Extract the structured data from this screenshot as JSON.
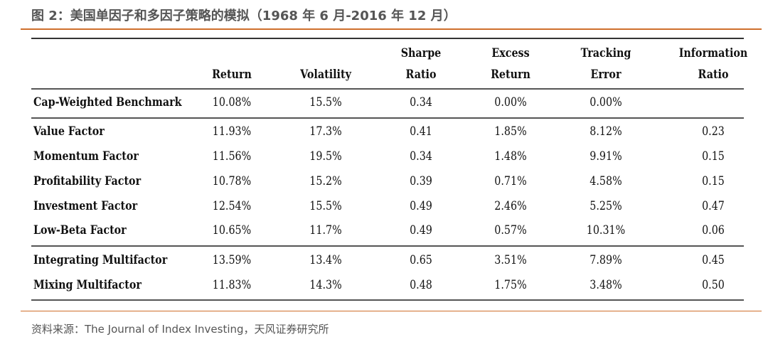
{
  "title": "图 2：美国单因子和多因子策略的模拟（1968 年 6 月-2016 年 12 月）",
  "columns": [
    {
      "line1": "",
      "line2": "Return"
    },
    {
      "line1": "",
      "line2": "Volatility"
    },
    {
      "line1": "Sharpe",
      "line2": "Ratio"
    },
    {
      "line1": "Excess",
      "line2": "Return"
    },
    {
      "line1": "Tracking",
      "line2": "Error"
    },
    {
      "line1": "Information",
      "line2": "Ratio"
    }
  ],
  "rows": [
    {
      "label": "Cap-Weighted Benchmark",
      "values": [
        "10.08%",
        "15.5%",
        "0.34",
        "0.00%",
        "0.00%",
        ""
      ]
    },
    {
      "label": "Value Factor",
      "values": [
        "11.93%",
        "17.3%",
        "0.41",
        "1.85%",
        "8.12%",
        "0.23"
      ]
    },
    {
      "label": "Momentum Factor",
      "values": [
        "11.56%",
        "19.5%",
        "0.34",
        "1.48%",
        "9.91%",
        "0.15"
      ]
    },
    {
      "label": "Profitability Factor",
      "values": [
        "10.78%",
        "15.2%",
        "0.39",
        "0.71%",
        "4.58%",
        "0.15"
      ]
    },
    {
      "label": "Investment Factor",
      "values": [
        "12.54%",
        "15.5%",
        "0.49",
        "2.46%",
        "5.25%",
        "0.47"
      ]
    },
    {
      "label": "Low-Beta Factor",
      "values": [
        "10.65%",
        "11.7%",
        "0.49",
        "0.57%",
        "10.31%",
        "0.06"
      ]
    },
    {
      "label": "Integrating Multifactor",
      "values": [
        "13.59%",
        "13.4%",
        "0.65",
        "3.51%",
        "7.89%",
        "0.45"
      ]
    },
    {
      "label": "Mixing Multifactor",
      "values": [
        "11.83%",
        "14.3%",
        "0.48",
        "1.75%",
        "3.48%",
        "0.50"
      ]
    }
  ],
  "source": "资料来源：The Journal of Index Investing，天风证券研究所"
}
